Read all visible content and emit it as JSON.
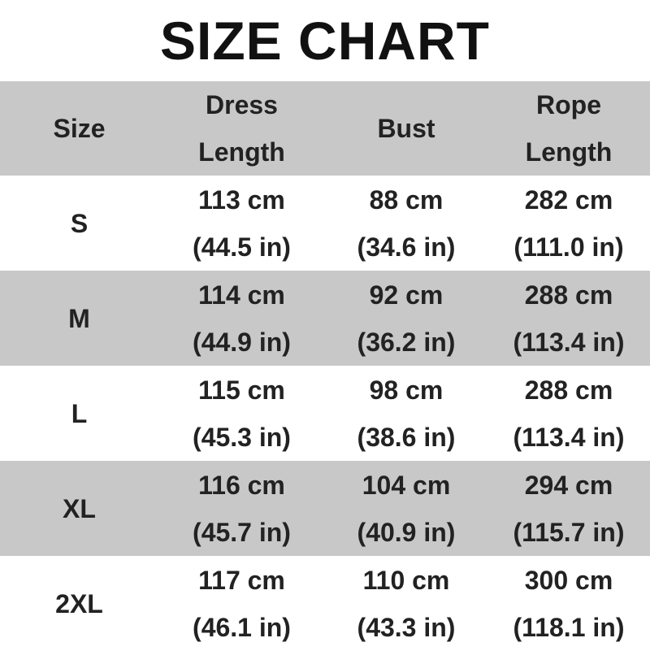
{
  "title": "SIZE CHART",
  "colors": {
    "header_bg": "#c8c8c8",
    "alt_row_bg": "#c8c8c8",
    "text": "#222222"
  },
  "chart_data": {
    "type": "table",
    "title": "SIZE CHART",
    "columns": [
      {
        "l1": "Size",
        "l2": ""
      },
      {
        "l1": "Dress",
        "l2": "Length"
      },
      {
        "l1": "Bust",
        "l2": ""
      },
      {
        "l1": "Rope",
        "l2": "Length"
      }
    ],
    "rows": [
      {
        "size": "S",
        "dress": [
          "113 cm",
          "(44.5 in)"
        ],
        "bust": [
          "88 cm",
          "(34.6 in)"
        ],
        "rope": [
          "282 cm",
          "(111.0 in)"
        ]
      },
      {
        "size": "M",
        "dress": [
          "114 cm",
          "(44.9 in)"
        ],
        "bust": [
          "92 cm",
          "(36.2 in)"
        ],
        "rope": [
          "288 cm",
          "(113.4 in)"
        ]
      },
      {
        "size": "L",
        "dress": [
          "115 cm",
          "(45.3 in)"
        ],
        "bust": [
          "98 cm",
          "(38.6 in)"
        ],
        "rope": [
          "288 cm",
          "(113.4 in)"
        ]
      },
      {
        "size": "XL",
        "dress": [
          "116 cm",
          "(45.7 in)"
        ],
        "bust": [
          "104 cm",
          "(40.9 in)"
        ],
        "rope": [
          "294 cm",
          "(115.7 in)"
        ]
      },
      {
        "size": "2XL",
        "dress": [
          "117 cm",
          "(46.1 in)"
        ],
        "bust": [
          "110 cm",
          "(43.3 in)"
        ],
        "rope": [
          "300 cm",
          "(118.1 in)"
        ]
      }
    ]
  }
}
